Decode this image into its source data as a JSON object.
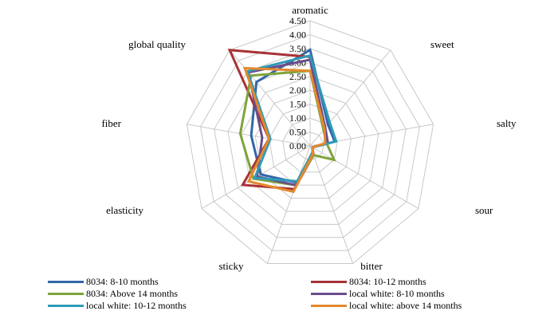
{
  "chart_data": {
    "type": "radar",
    "title": "",
    "axes": [
      "aromatic",
      "sweet",
      "salty",
      "sour",
      "bitter",
      "sticky",
      "elasticity",
      "fiber",
      "global quality"
    ],
    "rlim": [
      0,
      4.5
    ],
    "ticks": [
      "0.00",
      "0.50",
      "1.00",
      "1.50",
      "2.00",
      "2.50",
      "3.00",
      "3.50",
      "4.00",
      "4.50"
    ],
    "grid": true,
    "legend_position": "bottom",
    "series": [
      {
        "name": "8034: 8-10 months",
        "color": "#3366a8",
        "values": [
          3.45,
          1.0,
          0.9,
          0.1,
          0.25,
          1.4,
          2.05,
          2.15,
          3.0
        ]
      },
      {
        "name": "8034: 10-12 months",
        "color": "#a83236",
        "values": [
          3.2,
          0.8,
          0.6,
          0.1,
          0.35,
          1.65,
          2.8,
          1.5,
          4.5
        ]
      },
      {
        "name": "8034: Above 14 months",
        "color": "#7ea33a",
        "values": [
          2.7,
          0.75,
          0.6,
          1.0,
          0.35,
          1.5,
          2.35,
          2.55,
          3.3
        ]
      },
      {
        "name": "local white: 8-10 months",
        "color": "#6a4d8c",
        "values": [
          3.1,
          0.85,
          0.65,
          0.1,
          0.25,
          1.5,
          2.2,
          1.75,
          3.45
        ]
      },
      {
        "name": "local white: 10-12 months",
        "color": "#2f9ab8",
        "values": [
          3.25,
          1.1,
          0.95,
          0.1,
          0.25,
          1.35,
          2.3,
          1.45,
          3.5
        ]
      },
      {
        "name": "local white: above 14 months",
        "color": "#e38a2c",
        "values": [
          2.7,
          0.8,
          0.55,
          0.1,
          0.3,
          1.75,
          2.55,
          1.5,
          3.65
        ]
      }
    ]
  }
}
